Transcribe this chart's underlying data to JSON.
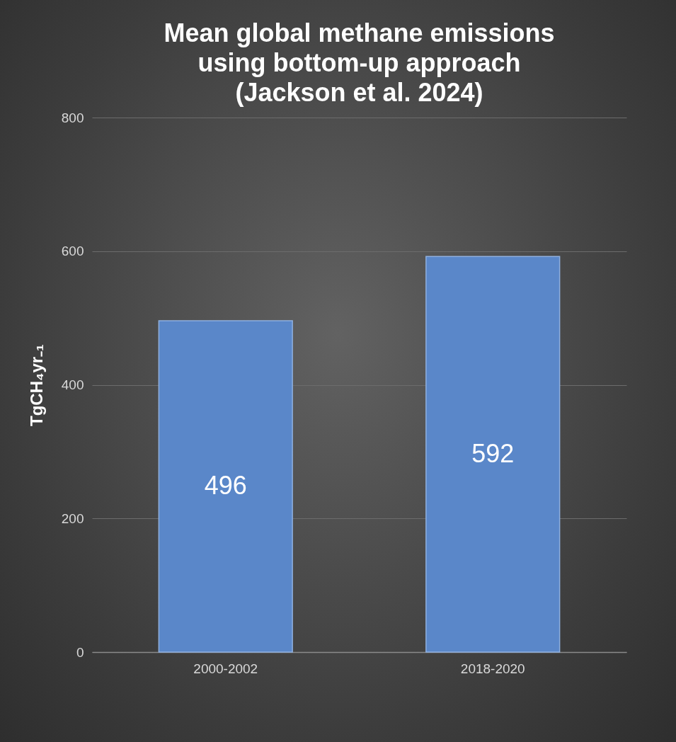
{
  "chart_data": {
    "type": "bar",
    "title": "Mean global methane emissions\nusing bottom-up approach\n(Jackson et al. 2024)",
    "ylabel": "TgCH₄yr₋₁",
    "categories": [
      "2000-2002",
      "2018-2020"
    ],
    "values": [
      496,
      592
    ],
    "color": "#5a87c9",
    "ylim": [
      0,
      800
    ],
    "yticks": [
      0,
      200,
      400,
      600,
      800
    ],
    "grid": "y",
    "data_labels": true
  }
}
